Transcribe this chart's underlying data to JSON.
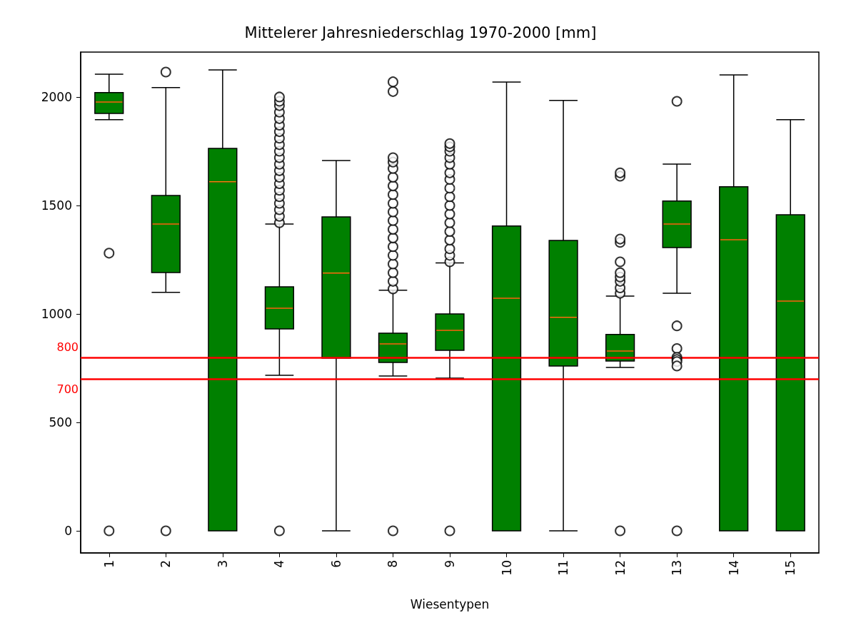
{
  "chart_data": {
    "type": "box",
    "title": "Mittelerer Jahresniederschlag 1970-2000 [mm]",
    "xlabel": "Wiesentypen",
    "categories": [
      "1",
      "2",
      "3",
      "4",
      "6",
      "8",
      "9",
      "10",
      "11",
      "12",
      "13",
      "14",
      "15"
    ],
    "color": "#008000",
    "boxes": [
      {
        "low": 1895,
        "q1": 1924,
        "median": 1977,
        "q3": 2020,
        "high": 2105,
        "outliers": [
          1280,
          0
        ]
      },
      {
        "low": 1099,
        "q1": 1191,
        "median": 1414,
        "q3": 1546,
        "high": 2043,
        "outliers": [
          2115,
          0
        ]
      },
      {
        "low": 0,
        "q1": 0,
        "median": 1609,
        "q3": 1763,
        "high": 2125
      },
      {
        "low": 717,
        "q1": 931,
        "median": 1026,
        "q3": 1125,
        "high": 1414,
        "outliers": [
          1420,
          1450,
          1480,
          1510,
          1540,
          1570,
          1600,
          1630,
          1660,
          1690,
          1720,
          1750,
          1780,
          1810,
          1840,
          1870,
          1900,
          1930,
          1960,
          1980,
          2000,
          0
        ]
      },
      {
        "low": 0,
        "q1": 796,
        "median": 1188,
        "q3": 1447,
        "high": 1707
      },
      {
        "low": 714,
        "q1": 776,
        "median": 862,
        "q3": 911,
        "high": 1109,
        "outliers": [
          1115,
          1150,
          1190,
          1230,
          1270,
          1310,
          1350,
          1390,
          1430,
          1470,
          1510,
          1550,
          1590,
          1630,
          1670,
          1700,
          1720,
          2025,
          2070,
          0
        ]
      },
      {
        "low": 704,
        "q1": 832,
        "median": 924,
        "q3": 1000,
        "high": 1235,
        "outliers": [
          1240,
          1270,
          1300,
          1340,
          1380,
          1420,
          1460,
          1500,
          1540,
          1580,
          1620,
          1650,
          1690,
          1720,
          1750,
          1770,
          1785,
          0
        ]
      },
      {
        "low": 0,
        "q1": 0,
        "median": 1072,
        "q3": 1405,
        "high": 2069
      },
      {
        "low": 0,
        "q1": 760,
        "median": 984,
        "q3": 1339,
        "high": 1984
      },
      {
        "low": 753,
        "q1": 783,
        "median": 829,
        "q3": 905,
        "high": 1082,
        "outliers": [
          1095,
          1120,
          1150,
          1170,
          1190,
          1240,
          1330,
          1345,
          1635,
          1650,
          0
        ]
      },
      {
        "low": 1095,
        "q1": 1306,
        "median": 1414,
        "q3": 1520,
        "high": 1691,
        "outliers": [
          1980,
          945,
          840,
          800,
          790,
          780,
          760,
          0
        ]
      },
      {
        "low": 0,
        "q1": 0,
        "median": 1342,
        "q3": 1586,
        "high": 2102
      },
      {
        "low": 0,
        "q1": 0,
        "median": 1059,
        "q3": 1457,
        "high": 1895
      }
    ],
    "ylim": [
      -102,
      2207
    ],
    "yticks": [
      0,
      500,
      1000,
      1500,
      2000
    ],
    "ref_lines": [
      {
        "axis": "y",
        "value": 800,
        "label": "800",
        "color": "#ff0000"
      },
      {
        "axis": "y",
        "value": 700,
        "label": "700",
        "color": "#ff0000"
      }
    ]
  }
}
